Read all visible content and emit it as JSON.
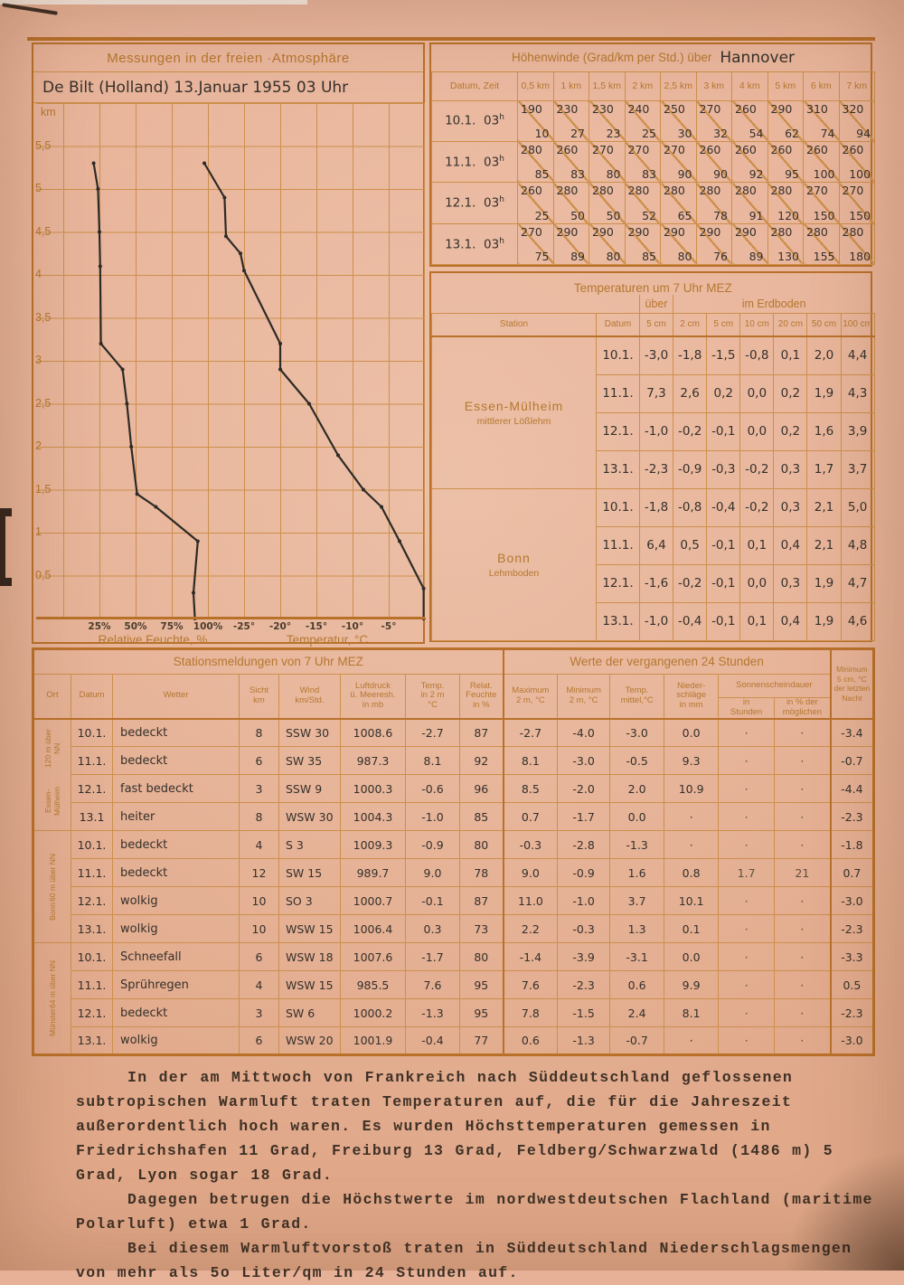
{
  "palette": {
    "paper": "#e7b197",
    "grid_line": "#cd8f4b",
    "heavy_line": "#b9712a",
    "printed_text": "#b5772f",
    "handwritten_text": "#35302b",
    "typewriter_text": "#3f3126",
    "curve": "#2e2a26"
  },
  "chart_panel": {
    "title": "Messungen in der freien ·Atmosphäre",
    "subtitle": "De Bilt (Holland) 13.Januar 1955  03 Uhr",
    "y_unit": "km",
    "caption_left": "Relative Feuchte, %",
    "caption_right": "Temperatur, °C"
  },
  "chart_data": {
    "type": "line",
    "title": "Messungen in der freien Atmosphäre — De Bilt (Holland), 13. Januar 1955, 03 Uhr",
    "ylabel": "km",
    "ylim": [
      0,
      6
    ],
    "grid": true,
    "x_axes": [
      {
        "name": "Relative Feuchte",
        "unit": "%",
        "range": [
          0,
          100
        ]
      },
      {
        "name": "Temperatur",
        "unit": "°C",
        "range": [
          -25,
          0
        ]
      }
    ],
    "y_ticks": [
      {
        "v": 5.5,
        "label": "5,5"
      },
      {
        "v": 5,
        "label": "5"
      },
      {
        "v": 4.5,
        "label": "4,5"
      },
      {
        "v": 4,
        "label": "4"
      },
      {
        "v": 3.5,
        "label": "3,5"
      },
      {
        "v": 3,
        "label": "3"
      },
      {
        "v": 2.5,
        "label": "2,5"
      },
      {
        "v": 2,
        "label": "2"
      },
      {
        "v": 1.5,
        "label": "1,5"
      },
      {
        "v": 1,
        "label": "1"
      },
      {
        "v": 0.5,
        "label": "0,5"
      }
    ],
    "hum_ticks": [
      {
        "v": 25,
        "label": "25%"
      },
      {
        "v": 50,
        "label": "50%"
      },
      {
        "v": 75,
        "label": "75%"
      },
      {
        "v": 100,
        "label": "100%"
      }
    ],
    "temp_ticks": [
      {
        "v": -25,
        "label": "-25°"
      },
      {
        "v": -20,
        "label": "-20°"
      },
      {
        "v": -15,
        "label": "-15°"
      },
      {
        "v": -10,
        "label": "-10°"
      },
      {
        "v": -5,
        "label": "-5°"
      }
    ],
    "series": [
      {
        "name": "Relative Feuchte (%) vs Höhe (km)",
        "points": [
          [
            0,
            91
          ],
          [
            0.3,
            90
          ],
          [
            0.9,
            93
          ],
          [
            1.3,
            64
          ],
          [
            1.45,
            51
          ],
          [
            2.0,
            47
          ],
          [
            2.5,
            44
          ],
          [
            2.9,
            41
          ],
          [
            3.2,
            26
          ],
          [
            4.1,
            25.5
          ],
          [
            4.5,
            25
          ],
          [
            5.0,
            24
          ],
          [
            5.3,
            21
          ]
        ]
      },
      {
        "name": "Temperatur (°C) vs Höhe (km)",
        "points": [
          [
            0,
            0.3
          ],
          [
            0.35,
            0.3
          ],
          [
            0.9,
            -3.5
          ],
          [
            1.3,
            -6
          ],
          [
            1.5,
            -8.5
          ],
          [
            1.9,
            -12
          ],
          [
            2.5,
            -16
          ],
          [
            2.9,
            -20
          ],
          [
            3.2,
            -20
          ],
          [
            4.05,
            -25
          ],
          [
            4.25,
            -25.5
          ],
          [
            4.45,
            -27.5
          ],
          [
            4.9,
            -27.7
          ],
          [
            5.3,
            -30.5
          ]
        ]
      }
    ]
  },
  "hohenwinde": {
    "title": "Höhenwinde (Grad/km per Std.) über",
    "title_hand": "Hannover",
    "col0": "Datum, Zeit",
    "cols": [
      {
        "l": "0,5 km"
      },
      {
        "l": "1 km"
      },
      {
        "l": "1,5 km"
      },
      {
        "l": "2 km"
      },
      {
        "l": "2,5 km"
      },
      {
        "l": "3 km"
      },
      {
        "l": "4 km"
      },
      {
        "l": "5 km"
      },
      {
        "l": "6 km"
      },
      {
        "l": "7 km"
      }
    ],
    "rows": [
      {
        "datum": "10.1.",
        "zeit": "03",
        "sup": "h",
        "cells": [
          {
            "dir": "190",
            "spd": "10"
          },
          {
            "dir": "230",
            "spd": "27"
          },
          {
            "dir": "230",
            "spd": "23"
          },
          {
            "dir": "240",
            "spd": "25"
          },
          {
            "dir": "250",
            "spd": "30"
          },
          {
            "dir": "270",
            "spd": "32"
          },
          {
            "dir": "260",
            "spd": "54"
          },
          {
            "dir": "290",
            "spd": "62"
          },
          {
            "dir": "310",
            "spd": "74"
          },
          {
            "dir": "320",
            "spd": "94"
          }
        ]
      },
      {
        "datum": "11.1.",
        "zeit": "03",
        "sup": "h",
        "cells": [
          {
            "dir": "280",
            "spd": "85"
          },
          {
            "dir": "260",
            "spd": "83"
          },
          {
            "dir": "270",
            "spd": "80"
          },
          {
            "dir": "270",
            "spd": "83"
          },
          {
            "dir": "270",
            "spd": "90"
          },
          {
            "dir": "260",
            "spd": "90"
          },
          {
            "dir": "260",
            "spd": "92"
          },
          {
            "dir": "260",
            "spd": "95"
          },
          {
            "dir": "260",
            "spd": "100"
          },
          {
            "dir": "260",
            "spd": "100"
          }
        ]
      },
      {
        "datum": "12.1.",
        "zeit": "03",
        "sup": "h",
        "cells": [
          {
            "dir": "260",
            "spd": "25"
          },
          {
            "dir": "280",
            "spd": "50"
          },
          {
            "dir": "280",
            "spd": "50"
          },
          {
            "dir": "280",
            "spd": "52"
          },
          {
            "dir": "280",
            "spd": "65"
          },
          {
            "dir": "280",
            "spd": "78"
          },
          {
            "dir": "280",
            "spd": "91"
          },
          {
            "dir": "280",
            "spd": "120"
          },
          {
            "dir": "270",
            "spd": "150"
          },
          {
            "dir": "270",
            "spd": "150"
          }
        ]
      },
      {
        "datum": "13.1.",
        "zeit": "03",
        "sup": "h",
        "cells": [
          {
            "dir": "270",
            "spd": "75"
          },
          {
            "dir": "290",
            "spd": "89"
          },
          {
            "dir": "290",
            "spd": "80"
          },
          {
            "dir": "290",
            "spd": "85"
          },
          {
            "dir": "290",
            "spd": "80"
          },
          {
            "dir": "290",
            "spd": "76"
          },
          {
            "dir": "290",
            "spd": "89"
          },
          {
            "dir": "280",
            "spd": "130"
          },
          {
            "dir": "280",
            "spd": "155"
          },
          {
            "dir": "280",
            "spd": "180"
          }
        ]
      }
    ]
  },
  "temperaturen": {
    "title": "Temperaturen um 7 Uhr MEZ",
    "ueber": "über",
    "erdboden": "im Erdboden",
    "station_col": "Station",
    "datum_col": "Datum",
    "depth_cols": [
      {
        "l": "5 cm"
      },
      {
        "l": "2 cm"
      },
      {
        "l": "5 cm"
      },
      {
        "l": "10 cm"
      },
      {
        "l": "20 cm"
      },
      {
        "l": "50 cm"
      },
      {
        "l": "100 cm"
      }
    ],
    "groups": [
      {
        "station": "Essen-Mülheim",
        "soil": "mittlerer Lößlehm",
        "rows": [
          {
            "datum": "10.1.",
            "vals": [
              "-3,0",
              "-1,8",
              "-1,5",
              "-0,8",
              "0,1",
              "2,0",
              "4,4"
            ]
          },
          {
            "datum": "11.1.",
            "vals": [
              "7,3",
              "2,6",
              "0,2",
              "0,0",
              "0,2",
              "1,9",
              "4,3"
            ]
          },
          {
            "datum": "12.1.",
            "vals": [
              "-1,0",
              "-0,2",
              "-0,1",
              "0,0",
              "0,2",
              "1,6",
              "3,9"
            ]
          },
          {
            "datum": "13.1.",
            "vals": [
              "-2,3",
              "-0,9",
              "-0,3",
              "-0,2",
              "0,3",
              "1,7",
              "3,7"
            ]
          }
        ]
      },
      {
        "station": "Bonn",
        "soil": "Lehmboden",
        "rows": [
          {
            "datum": "10.1.",
            "vals": [
              "-1,8",
              "-0,8",
              "-0,4",
              "-0,2",
              "0,3",
              "2,1",
              "5,0"
            ]
          },
          {
            "datum": "11.1.",
            "vals": [
              "6,4",
              "0,5",
              "-0,1",
              "0,1",
              "0,4",
              "2,1",
              "4,8"
            ]
          },
          {
            "datum": "12.1.",
            "vals": [
              "-1,6",
              "-0,2",
              "-0,1",
              "0,0",
              "0,3",
              "1,9",
              "4,7"
            ]
          },
          {
            "datum": "13.1.",
            "vals": [
              "-1,0",
              "-0,4",
              "-0,1",
              "0,1",
              "0,4",
              "1,9",
              "4,6"
            ]
          }
        ]
      }
    ]
  },
  "stationsmeldungen": {
    "title_left": "Stationsmeldungen von 7 Uhr MEZ",
    "title_right": "Werte der vergangenen 24 Stunden",
    "headers": {
      "ort": "Ort",
      "datum": "Datum",
      "wetter": "Wetter",
      "sicht1": "Sicht",
      "sicht2": "km",
      "wind1": "Wind",
      "wind2": "km/Std.",
      "luft1": "Luftdruck",
      "luft2": "ü. Meeresh.",
      "luft3": "in mb",
      "temp1": "Temp.",
      "temp2": "in 2 m",
      "temp3": "°C",
      "feuchte1": "Relat.",
      "feuchte2": "Feuchte",
      "feuchte3": "in %",
      "max1": "Maximum",
      "max2": "2 m, °C",
      "min1": "Minimum",
      "min2": "2 m, °C",
      "mittel1": "Temp.",
      "mittel2": "mittel,°C",
      "nieder1": "Nieder-",
      "nieder2": "schläge",
      "nieder3": "in mm",
      "sonne": "Sonnenscheindauer",
      "sonne_h1": "in",
      "sonne_h2": "Stunden",
      "sonne_p1": "in % der",
      "sonne_p2": "möglichen",
      "min5_1": "Minimum",
      "min5_2": "5 cm, °C",
      "min5_3": "der letzten",
      "min5_4": "Nacht"
    },
    "stations": [
      {
        "name": "Essen-Mülheim",
        "alt": "120 m über NN",
        "rows": [
          {
            "datum": "10.1.",
            "wetter": "bedeckt",
            "sicht": "8",
            "wind": "SSW 30",
            "druck": "1008.6",
            "temp": "-2.7",
            "feuchte": "87",
            "max": "-2.7",
            "min": "-4.0",
            "mittel": "-3.0",
            "nieder": "0.0",
            "sonnh": "·",
            "sonnp": "·",
            "min5": "-3.4"
          },
          {
            "datum": "11.1.",
            "wetter": "bedeckt",
            "sicht": "6",
            "wind": "SW 35",
            "druck": "987.3",
            "temp": "8.1",
            "feuchte": "92",
            "max": "8.1",
            "min": "-3.0",
            "mittel": "-0.5",
            "nieder": "9.3",
            "sonnh": "·",
            "sonnp": "·",
            "min5": "-0.7"
          },
          {
            "datum": "12.1.",
            "wetter": "fast bedeckt",
            "sicht": "3",
            "wind": "SSW 9",
            "druck": "1000.3",
            "temp": "-0.6",
            "feuchte": "96",
            "max": "8.5",
            "min": "-2.0",
            "mittel": "2.0",
            "nieder": "10.9",
            "sonnh": "·",
            "sonnp": "·",
            "min5": "-4.4"
          },
          {
            "datum": "13.1",
            "wetter": "heiter",
            "sicht": "8",
            "wind": "WSW 30",
            "druck": "1004.3",
            "temp": "-1.0",
            "feuchte": "85",
            "max": "0.7",
            "min": "-1.7",
            "mittel": "0.0",
            "nieder": "·",
            "sonnh": "·",
            "sonnp": "·",
            "min5": "-2.3"
          }
        ]
      },
      {
        "name": "Bonn",
        "alt": "60 m über NN",
        "rows": [
          {
            "datum": "10.1.",
            "wetter": "bedeckt",
            "sicht": "4",
            "wind": "S 3",
            "druck": "1009.3",
            "temp": "-0.9",
            "feuchte": "80",
            "max": "-0.3",
            "min": "-2.8",
            "mittel": "-1.3",
            "nieder": "·",
            "sonnh": "·",
            "sonnp": "·",
            "min5": "-1.8"
          },
          {
            "datum": "11.1.",
            "wetter": "bedeckt",
            "sicht": "12",
            "wind": "SW 15",
            "druck": "989.7",
            "temp": "9.0",
            "feuchte": "78",
            "max": "9.0",
            "min": "-0.9",
            "mittel": "1.6",
            "nieder": "0.8",
            "sonnh": "1.7",
            "sonnp": "21",
            "min5": "0.7"
          },
          {
            "datum": "12.1.",
            "wetter": "wolkig",
            "sicht": "10",
            "wind": "SO 3",
            "druck": "1000.7",
            "temp": "-0.1",
            "feuchte": "87",
            "max": "11.0",
            "min": "-1.0",
            "mittel": "3.7",
            "nieder": "10.1",
            "sonnh": "·",
            "sonnp": "·",
            "min5": "-3.0"
          },
          {
            "datum": "13.1.",
            "wetter": "wolkig",
            "sicht": "10",
            "wind": "WSW 15",
            "druck": "1006.4",
            "temp": "0.3",
            "feuchte": "73",
            "max": "2.2",
            "min": "-0.3",
            "mittel": "1.3",
            "nieder": "0.1",
            "sonnh": "·",
            "sonnp": "·",
            "min5": "-2.3"
          }
        ]
      },
      {
        "name": "Münster",
        "alt": "64 m über NN",
        "rows": [
          {
            "datum": "10.1.",
            "wetter": "Schneefall",
            "sicht": "6",
            "wind": "WSW 18",
            "druck": "1007.6",
            "temp": "-1.7",
            "feuchte": "80",
            "max": "-1.4",
            "min": "-3.9",
            "mittel": "-3.1",
            "nieder": "0.0",
            "sonnh": "·",
            "sonnp": "·",
            "min5": "-3.3"
          },
          {
            "datum": "11.1.",
            "wetter": "Sprühregen",
            "sicht": "4",
            "wind": "WSW 15",
            "druck": "985.5",
            "temp": "7.6",
            "feuchte": "95",
            "max": "7.6",
            "min": "-2.3",
            "mittel": "0.6",
            "nieder": "9.9",
            "sonnh": "·",
            "sonnp": "·",
            "min5": "0.5"
          },
          {
            "datum": "12.1.",
            "wetter": "bedeckt",
            "sicht": "3",
            "wind": "SW 6",
            "druck": "1000.2",
            "temp": "-1.3",
            "feuchte": "95",
            "max": "7.8",
            "min": "-1.5",
            "mittel": "2.4",
            "nieder": "8.1",
            "sonnh": "·",
            "sonnp": "·",
            "min5": "-2.3"
          },
          {
            "datum": "13.1.",
            "wetter": "wolkig",
            "sicht": "6",
            "wind": "WSW 20",
            "druck": "1001.9",
            "temp": "-0.4",
            "feuchte": "77",
            "max": "0.6",
            "min": "-1.3",
            "mittel": "-0.7",
            "nieder": "·",
            "sonnh": "·",
            "sonnp": "·",
            "min5": "-3.0"
          }
        ]
      }
    ]
  },
  "text": {
    "paragraphs": [
      {
        "t": "In der am Mittwoch von Frankreich nach Süddeutschland geflossenen subtropischen Warmluft traten Temperaturen auf, die für die Jahreszeit außerordentlich hoch waren. Es wurden Höchsttemperaturen gemessen in Friedrichshafen 11 Grad, Freiburg 13 Grad, Feldberg/Schwarzwald (1486 m) 5 Grad, Lyon sogar 18 Grad."
      },
      {
        "t": "Dagegen betrugen die Höchstwerte im nordwestdeutschen Flachland (maritime Polarluft) etwa 1 Grad."
      },
      {
        "t": "Bei diesem Warmluftvorstoß traten in Süddeutschland Niederschlagsmengen von mehr als 5o Liter/qm in 24 Stunden auf."
      }
    ]
  }
}
